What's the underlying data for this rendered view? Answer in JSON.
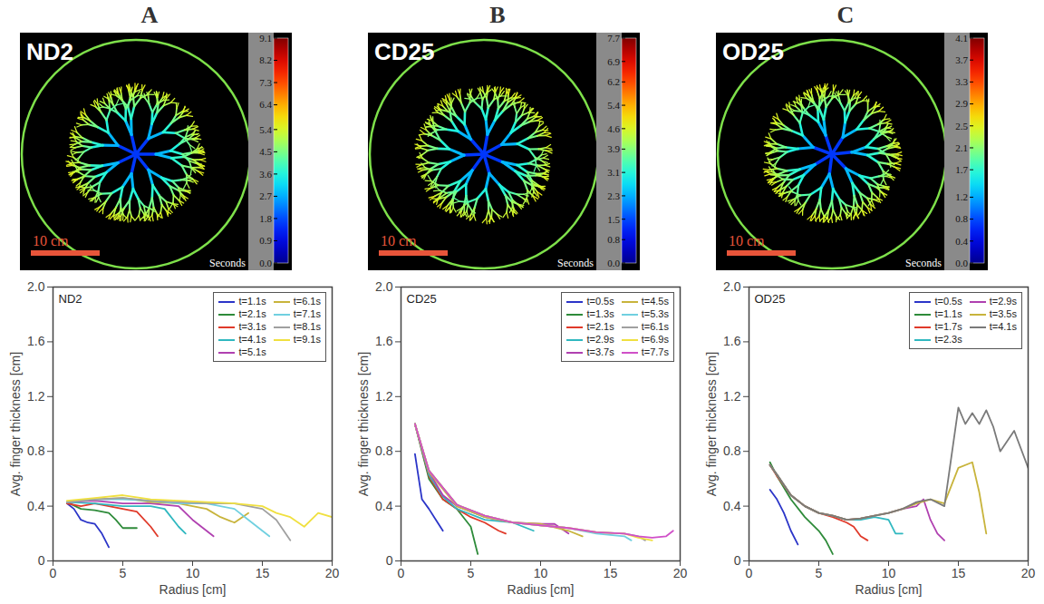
{
  "chart_data": [
    {
      "type": "image",
      "panel_label": "A",
      "title": "ND2",
      "scale_bar": "10 cm",
      "colorbar": {
        "label": "Seconds",
        "range": [
          0,
          9.1
        ],
        "ticks": [
          {
            "value": 0,
            "label": "0.0"
          },
          0.9,
          1.8,
          2.7,
          3.6,
          4.5,
          5.4,
          6.4,
          7.3,
          8.2,
          9.1
        ]
      }
    },
    {
      "type": "image",
      "panel_label": "B",
      "title": "CD25",
      "scale_bar": "10 cm",
      "colorbar": {
        "label": "Seconds",
        "range": [
          0,
          7.7
        ],
        "ticks": [
          {
            "value": 0,
            "label": "0.0"
          },
          0.8,
          1.5,
          2.3,
          3.1,
          3.9,
          4.6,
          5.4,
          6.2,
          6.9,
          7.7
        ]
      }
    },
    {
      "type": "image",
      "panel_label": "C",
      "title": "OD25",
      "scale_bar": "10 cm",
      "colorbar": {
        "label": "Seconds",
        "range": [
          0,
          4.1
        ],
        "ticks": [
          {
            "value": 0,
            "label": "0.0"
          },
          0.4,
          0.8,
          1.2,
          1.7,
          2.1,
          2.5,
          2.9,
          3.3,
          3.7,
          4.1
        ]
      }
    },
    {
      "type": "line",
      "title": "ND2",
      "x_label": "Radius [cm]",
      "y_label": "Avg. finger thickness [cm]",
      "xlim": [
        0,
        20
      ],
      "xticks": [
        0,
        5,
        10,
        15,
        20
      ],
      "ylim": [
        0,
        2
      ],
      "yticks": [
        0,
        0.4,
        0.8,
        1.2,
        1.6,
        {
          "value": 2,
          "label": "2.0"
        }
      ],
      "legend": "top-right",
      "series": [
        {
          "name": "t=1.1s",
          "color": "#2b35c8",
          "x": [
            1,
            1.5,
            2,
            2.5,
            3,
            3.5,
            4
          ],
          "values": [
            0.42,
            0.38,
            0.3,
            0.28,
            0.27,
            0.2,
            0.1
          ]
        },
        {
          "name": "t=2.1s",
          "color": "#2e8b3a",
          "x": [
            1,
            2,
            3,
            4,
            4.5,
            5,
            6
          ],
          "values": [
            0.43,
            0.38,
            0.37,
            0.35,
            0.3,
            0.24,
            0.24
          ]
        },
        {
          "name": "t=3.1s",
          "color": "#e03a2a",
          "x": [
            1,
            2,
            3,
            4,
            5,
            6,
            7,
            7.5
          ],
          "values": [
            0.42,
            0.4,
            0.42,
            0.4,
            0.38,
            0.36,
            0.25,
            0.18
          ]
        },
        {
          "name": "t=4.1s",
          "color": "#30b8c0",
          "x": [
            1,
            3,
            5,
            7,
            8,
            9,
            9.5
          ],
          "values": [
            0.43,
            0.42,
            0.4,
            0.4,
            0.38,
            0.25,
            0.2
          ]
        },
        {
          "name": "t=5.1s",
          "color": "#b040b0",
          "x": [
            1,
            3,
            5,
            7,
            9,
            10,
            11,
            11.5
          ],
          "values": [
            0.43,
            0.44,
            0.42,
            0.42,
            0.4,
            0.3,
            0.22,
            0.18
          ]
        },
        {
          "name": "t=6.1s",
          "color": "#c8b43c",
          "x": [
            1,
            3,
            5,
            7,
            9,
            11,
            12,
            13,
            14
          ],
          "values": [
            0.43,
            0.45,
            0.46,
            0.43,
            0.42,
            0.38,
            0.32,
            0.28,
            0.35
          ]
        },
        {
          "name": "t=7.1s",
          "color": "#70d0e0",
          "x": [
            1,
            3,
            5,
            7,
            9,
            11,
            13,
            14,
            15,
            15.5
          ],
          "values": [
            0.43,
            0.45,
            0.45,
            0.44,
            0.42,
            0.42,
            0.38,
            0.3,
            0.22,
            0.18
          ]
        },
        {
          "name": "t=8.1s",
          "color": "#a0a0a0",
          "x": [
            1,
            3,
            5,
            7,
            9,
            11,
            13,
            15,
            16,
            17
          ],
          "values": [
            0.43,
            0.45,
            0.46,
            0.44,
            0.43,
            0.42,
            0.42,
            0.38,
            0.3,
            0.15
          ]
        },
        {
          "name": "t=9.1s",
          "color": "#f0e040",
          "x": [
            1,
            3,
            5,
            7,
            9,
            11,
            13,
            15,
            16,
            17,
            18,
            19,
            20
          ],
          "values": [
            0.44,
            0.46,
            0.48,
            0.45,
            0.44,
            0.43,
            0.42,
            0.4,
            0.35,
            0.32,
            0.25,
            0.35,
            0.32
          ]
        }
      ]
    },
    {
      "type": "line",
      "title": "CD25",
      "x_label": "Radius [cm]",
      "y_label": "Avg. finger thickness [cm]",
      "xlim": [
        0,
        20
      ],
      "xticks": [
        0,
        5,
        10,
        15,
        20
      ],
      "ylim": [
        0,
        2
      ],
      "yticks": [
        0,
        0.4,
        0.8,
        1.2,
        1.6,
        {
          "value": 2,
          "label": "2.0"
        }
      ],
      "legend": "top-right",
      "series": [
        {
          "name": "t=0.5s",
          "color": "#2b35c8",
          "x": [
            1,
            1.5,
            2,
            2.5,
            3
          ],
          "values": [
            0.78,
            0.45,
            0.38,
            0.3,
            0.22
          ]
        },
        {
          "name": "t=1.3s",
          "color": "#2e8b3a",
          "x": [
            1,
            2,
            3,
            4,
            5,
            5.5
          ],
          "values": [
            1.0,
            0.6,
            0.45,
            0.38,
            0.25,
            0.05
          ]
        },
        {
          "name": "t=2.1s",
          "color": "#e03a2a",
          "x": [
            1,
            2,
            3,
            4,
            5,
            6,
            7,
            7.5
          ],
          "values": [
            1.0,
            0.62,
            0.45,
            0.38,
            0.32,
            0.28,
            0.22,
            0.2
          ]
        },
        {
          "name": "t=2.9s",
          "color": "#30b8c0",
          "x": [
            1,
            2,
            3,
            4,
            6,
            8,
            9.5
          ],
          "values": [
            1.0,
            0.63,
            0.47,
            0.38,
            0.3,
            0.28,
            0.22
          ]
        },
        {
          "name": "t=3.7s",
          "color": "#b040b0",
          "x": [
            1,
            2,
            3,
            4,
            6,
            8,
            10,
            11,
            12
          ],
          "values": [
            1.0,
            0.65,
            0.48,
            0.4,
            0.32,
            0.28,
            0.27,
            0.27,
            0.2
          ]
        },
        {
          "name": "t=4.5s",
          "color": "#c8b43c",
          "x": [
            1,
            2,
            4,
            6,
            8,
            10,
            12,
            13
          ],
          "values": [
            1.0,
            0.65,
            0.4,
            0.32,
            0.28,
            0.27,
            0.22,
            0.18
          ]
        },
        {
          "name": "t=5.3s",
          "color": "#70d0e0",
          "x": [
            1,
            2,
            4,
            6,
            8,
            10,
            12,
            14,
            16,
            16.5
          ],
          "values": [
            1.0,
            0.66,
            0.41,
            0.33,
            0.28,
            0.26,
            0.24,
            0.2,
            0.18,
            0.15
          ]
        },
        {
          "name": "t=6.1s",
          "color": "#a0a0a0",
          "x": [
            1,
            2,
            4,
            6,
            8,
            10,
            12,
            14,
            16,
            17,
            17.5
          ],
          "values": [
            1.0,
            0.66,
            0.41,
            0.33,
            0.28,
            0.26,
            0.24,
            0.21,
            0.2,
            0.18,
            0.15
          ]
        },
        {
          "name": "t=6.9s",
          "color": "#f0e040",
          "x": [
            1,
            2,
            4,
            6,
            8,
            10,
            12,
            14,
            16,
            17,
            18
          ],
          "values": [
            1.0,
            0.66,
            0.41,
            0.33,
            0.28,
            0.26,
            0.24,
            0.21,
            0.2,
            0.17,
            0.15
          ]
        },
        {
          "name": "t=7.7s",
          "color": "#d050c8",
          "x": [
            1,
            2,
            4,
            6,
            8,
            10,
            12,
            14,
            16,
            17,
            18,
            19,
            19.5
          ],
          "values": [
            1.0,
            0.66,
            0.41,
            0.33,
            0.28,
            0.26,
            0.24,
            0.21,
            0.2,
            0.18,
            0.17,
            0.18,
            0.22
          ]
        }
      ]
    },
    {
      "type": "line",
      "title": "OD25",
      "x_label": "Radius [cm]",
      "y_label": "Avg. finger thickness [cm]",
      "xlim": [
        0,
        20
      ],
      "xticks": [
        0,
        5,
        10,
        15,
        20
      ],
      "ylim": [
        0,
        2
      ],
      "yticks": [
        0,
        0.4,
        0.8,
        1.2,
        1.6,
        {
          "value": 2,
          "label": "2.0"
        }
      ],
      "legend": "top-right",
      "series": [
        {
          "name": "t=0.5s",
          "color": "#2b35c8",
          "x": [
            1.5,
            2,
            2.5,
            3,
            3.5
          ],
          "values": [
            0.52,
            0.45,
            0.35,
            0.22,
            0.12
          ]
        },
        {
          "name": "t=1.1s",
          "color": "#2e8b3a",
          "x": [
            1.5,
            2,
            3,
            4,
            5,
            5.5,
            6
          ],
          "values": [
            0.72,
            0.62,
            0.45,
            0.32,
            0.22,
            0.15,
            0.05
          ]
        },
        {
          "name": "t=1.7s",
          "color": "#e03a2a",
          "x": [
            1.5,
            2,
            3,
            4,
            5,
            6,
            7,
            7.5,
            8,
            8.5
          ],
          "values": [
            0.7,
            0.62,
            0.48,
            0.4,
            0.35,
            0.32,
            0.28,
            0.25,
            0.18,
            0.15
          ]
        },
        {
          "name": "t=2.3s",
          "color": "#30b8c0",
          "x": [
            1.5,
            2,
            3,
            4,
            5,
            6,
            7,
            8,
            9,
            10,
            10.5,
            11
          ],
          "values": [
            0.7,
            0.63,
            0.48,
            0.4,
            0.35,
            0.33,
            0.3,
            0.3,
            0.32,
            0.3,
            0.2,
            0.2
          ]
        },
        {
          "name": "t=2.9s",
          "color": "#b040b0",
          "x": [
            1.5,
            2,
            3,
            4,
            5,
            6,
            7,
            8,
            9,
            10,
            11,
            12,
            12.5,
            13,
            13.5,
            14
          ],
          "values": [
            0.7,
            0.63,
            0.48,
            0.4,
            0.35,
            0.33,
            0.3,
            0.31,
            0.33,
            0.35,
            0.38,
            0.4,
            0.45,
            0.3,
            0.2,
            0.15
          ]
        },
        {
          "name": "t=3.5s",
          "color": "#c8b43c",
          "x": [
            1.5,
            2,
            3,
            4,
            5,
            6,
            7,
            8,
            9,
            10,
            11,
            12,
            13,
            14,
            15,
            16,
            16.5,
            17
          ],
          "values": [
            0.7,
            0.63,
            0.48,
            0.4,
            0.35,
            0.33,
            0.3,
            0.31,
            0.33,
            0.35,
            0.38,
            0.42,
            0.45,
            0.42,
            0.68,
            0.72,
            0.5,
            0.2
          ]
        },
        {
          "name": "t=4.1s",
          "color": "#7a7a7a",
          "x": [
            1.5,
            2,
            3,
            4,
            5,
            6,
            7,
            8,
            9,
            10,
            11,
            12,
            13,
            14,
            15,
            15.5,
            16,
            16.5,
            17,
            17.5,
            18,
            19,
            20
          ],
          "values": [
            0.7,
            0.63,
            0.48,
            0.4,
            0.35,
            0.33,
            0.3,
            0.31,
            0.33,
            0.35,
            0.38,
            0.43,
            0.45,
            0.4,
            1.12,
            1.0,
            1.08,
            1.0,
            1.1,
            0.98,
            0.8,
            0.95,
            0.68
          ]
        }
      ]
    }
  ]
}
